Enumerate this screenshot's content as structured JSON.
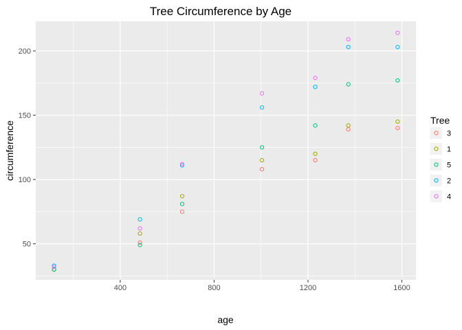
{
  "chart_data": {
    "type": "scatter",
    "title": "Tree Circumference by Age",
    "xlabel": "age",
    "ylabel": "circumference",
    "xlim": [
      40,
      1660
    ],
    "ylim": [
      22,
      223
    ],
    "x_ticks": [
      400,
      800,
      1200,
      1600
    ],
    "x_tick_labels": [
      "400",
      "800",
      "1200",
      "1600"
    ],
    "x_minor_ticks": [
      200,
      600,
      1000,
      1400
    ],
    "y_ticks": [
      50,
      100,
      150,
      200
    ],
    "y_tick_labels": [
      "50",
      "100",
      "150",
      "200"
    ],
    "y_minor_ticks": [
      25,
      75,
      125,
      175
    ],
    "grid": true,
    "legend_position": "right",
    "legend_title": "Tree",
    "x": [
      118,
      484,
      664,
      1004,
      1231,
      1372,
      1582
    ],
    "series": [
      {
        "name": "3",
        "color": "#F8766D",
        "values": [
          30,
          51,
          75,
          108,
          115,
          139,
          140
        ]
      },
      {
        "name": "1",
        "color": "#A3A500",
        "values": [
          30,
          58,
          87,
          115,
          120,
          142,
          145
        ]
      },
      {
        "name": "5",
        "color": "#00BF7D",
        "values": [
          30,
          49,
          81,
          125,
          142,
          174,
          177
        ]
      },
      {
        "name": "2",
        "color": "#00B0F6",
        "values": [
          33,
          69,
          111,
          156,
          172,
          203,
          203
        ]
      },
      {
        "name": "4",
        "color": "#E76BF3",
        "values": [
          32,
          62,
          112,
          167,
          179,
          209,
          214
        ]
      }
    ]
  }
}
